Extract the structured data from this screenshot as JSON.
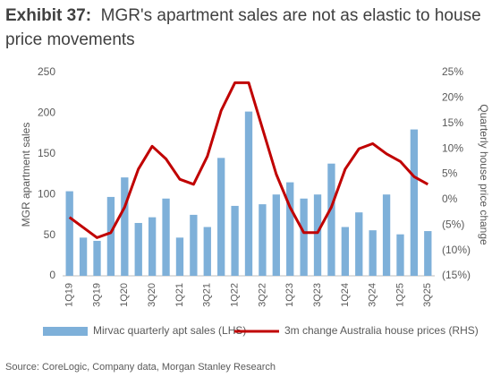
{
  "chart_data": {
    "type": "combo",
    "title": "Exhibit 37:",
    "subtitle": "MGR's apartment sales are not as elastic to house price movements",
    "source": "Source: CoreLogic, Company data, Morgan Stanley Research",
    "ylabel": "MGR apartment sales",
    "y2label": "Quarterly house price change",
    "categories": [
      "1Q19",
      null,
      "3Q19",
      null,
      "1Q20",
      null,
      "3Q20",
      null,
      "1Q21",
      null,
      "3Q21",
      null,
      "1Q22",
      null,
      "3Q22",
      null,
      "1Q23",
      null,
      "3Q23",
      null,
      "1Q24",
      null,
      "3Q24",
      null,
      "1Q25",
      null,
      "3Q25"
    ],
    "series": [
      {
        "name": "Mirvac quarterly apt sales (LHS)",
        "type": "bar",
        "color": "#7eb0d9",
        "values": [
          104,
          47,
          43,
          97,
          121,
          65,
          72,
          95,
          47,
          75,
          60,
          145,
          86,
          202,
          88,
          100,
          115,
          95,
          100,
          138,
          60,
          78,
          56,
          100,
          51,
          180,
          55
        ]
      },
      {
        "name": "3m change Australia house prices (RHS)",
        "type": "line",
        "axis": "y2",
        "color": "#c00000",
        "values": [
          -3.5,
          -5.5,
          -7.5,
          -6.5,
          -1.5,
          6,
          10.5,
          8,
          4,
          3,
          8.5,
          17.5,
          23,
          23,
          14,
          5,
          -1.5,
          -6.5,
          -6.5,
          -1.5,
          6,
          10,
          11,
          9,
          7.5,
          4.5,
          3
        ]
      }
    ],
    "ylim": [
      0,
      250
    ],
    "yticks": [
      0,
      50,
      100,
      150,
      200,
      250
    ],
    "y2lim": [
      -15,
      25
    ],
    "y2ticks": [
      {
        "value": -15,
        "label": "(15%)"
      },
      {
        "value": -10,
        "label": "(10%)"
      },
      {
        "value": -5,
        "label": "(5%)"
      },
      {
        "value": 0,
        "label": "0%"
      },
      {
        "value": 5,
        "label": "5%"
      },
      {
        "value": 10,
        "label": "10%"
      },
      {
        "value": 15,
        "label": "15%"
      },
      {
        "value": 20,
        "label": "20%"
      },
      {
        "value": 25,
        "label": "25%"
      }
    ],
    "legend": "bottom"
  }
}
